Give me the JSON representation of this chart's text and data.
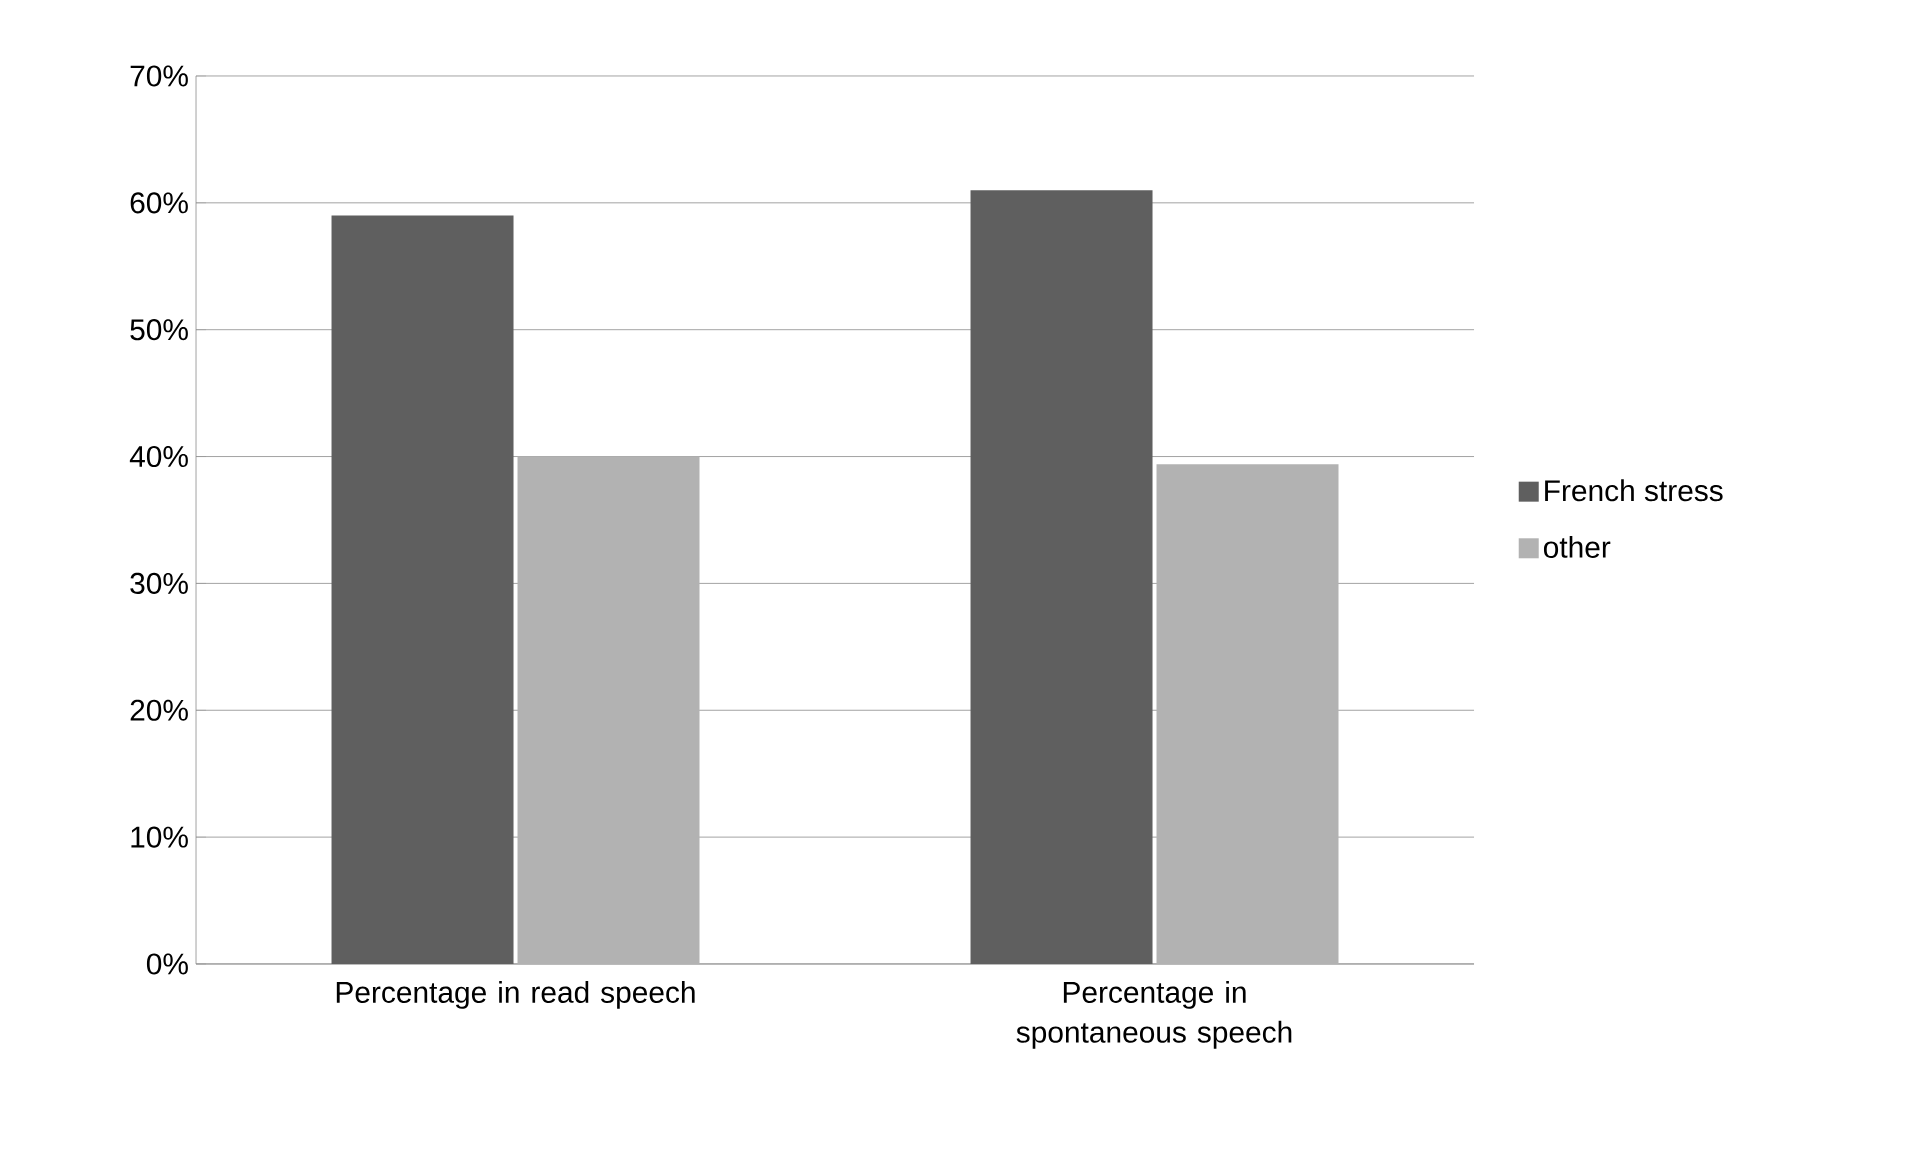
{
  "chart_data": {
    "type": "bar",
    "categories": [
      "Percentage in read speech",
      "Percentage in spontaneous speech"
    ],
    "series": [
      {
        "name": "French stress",
        "color": "#5f5f5f",
        "values": [
          59,
          61
        ]
      },
      {
        "name": "other",
        "color": "#b2b2b2",
        "values": [
          40,
          39.4
        ]
      }
    ],
    "ylim": [
      0,
      70
    ],
    "yticks": [
      {
        "value": 0,
        "label": "0%"
      },
      {
        "value": 10,
        "label": "10%"
      },
      {
        "value": 20,
        "label": "20%"
      },
      {
        "value": 30,
        "label": "30%"
      },
      {
        "value": 40,
        "label": "40%"
      },
      {
        "value": 50,
        "label": "50%"
      },
      {
        "value": 60,
        "label": "60%"
      },
      {
        "value": 70,
        "label": "70%"
      }
    ],
    "grid": "y",
    "legend": "right"
  }
}
